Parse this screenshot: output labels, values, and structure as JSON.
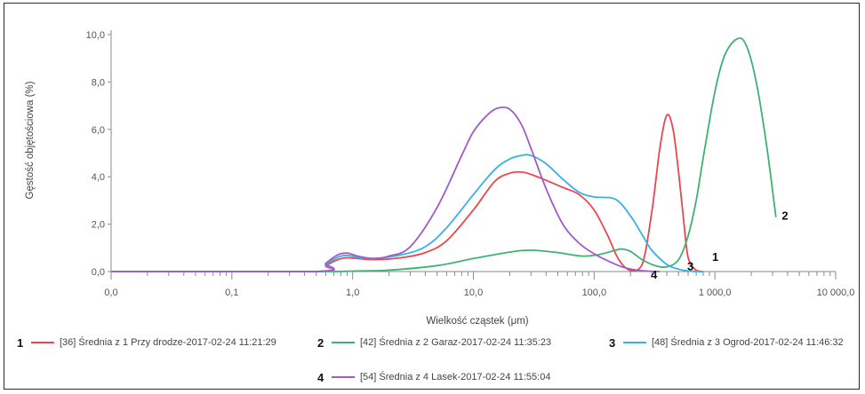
{
  "chart_data": {
    "type": "line",
    "xscale": "log",
    "xlabel": "Wielkość cząstek (μm)",
    "ylabel": "Gęstość objętościowa (%)",
    "xlim": [
      0.01,
      10000
    ],
    "ylim": [
      0,
      10
    ],
    "x_ticks": [
      0.01,
      0.1,
      1,
      10,
      100,
      1000,
      10000
    ],
    "x_tick_labels": [
      "0,0",
      "0,1",
      "1,0",
      "10,0",
      "100,0",
      "1 000,0",
      "10 000,0"
    ],
    "y_ticks": [
      0,
      2,
      4,
      6,
      8,
      10
    ],
    "y_tick_labels": [
      "0,0",
      "2,0",
      "4,0",
      "6,0",
      "8,0",
      "10,0"
    ],
    "grid": false,
    "legend_position": "bottom",
    "series": [
      {
        "number": "1",
        "name": "[36] Średnia z 1 Przy drodze-2017-02-24 11:21:29",
        "color": "#e8474f",
        "x": [
          0.01,
          0.5,
          0.6,
          0.75,
          0.9,
          1.1,
          1.5,
          2.5,
          4,
          6,
          10,
          15,
          20,
          25,
          30,
          40,
          55,
          75,
          100,
          130,
          160,
          200,
          250,
          300,
          350,
          400,
          450,
          500,
          550,
          600,
          700,
          800
        ],
        "y": [
          0,
          0,
          0.25,
          0.5,
          0.58,
          0.55,
          0.5,
          0.58,
          0.8,
          1.3,
          2.6,
          3.8,
          4.15,
          4.2,
          4.1,
          3.85,
          3.55,
          3.25,
          2.6,
          1.5,
          0.5,
          0.05,
          0.3,
          2.5,
          5.2,
          6.6,
          6.0,
          4.2,
          2.2,
          0.6,
          0.05,
          0
        ]
      },
      {
        "number": "2",
        "name": "[42] Średnia z 2 Garaz-2017-02-24 11:35:23",
        "color": "#3cb371",
        "x": [
          0.01,
          0.5,
          1,
          2,
          5,
          10,
          20,
          30,
          50,
          80,
          110,
          150,
          170,
          200,
          250,
          320,
          400,
          500,
          600,
          700,
          800,
          1000,
          1200,
          1500,
          1800,
          2200,
          2700,
          3200
        ],
        "y": [
          0,
          0,
          0.02,
          0.06,
          0.25,
          0.55,
          0.82,
          0.9,
          0.8,
          0.65,
          0.72,
          0.9,
          0.95,
          0.85,
          0.5,
          0.25,
          0.2,
          0.5,
          1.5,
          3.0,
          4.8,
          7.6,
          9.1,
          9.8,
          9.6,
          8.0,
          5.2,
          2.3
        ]
      },
      {
        "number": "3",
        "name": "[48] Średnia z 3 Ogrod-2017-02-24 11:46:32",
        "color": "#3ab0e6",
        "x": [
          0.01,
          0.5,
          0.6,
          0.75,
          0.9,
          1.1,
          1.5,
          2.5,
          4,
          6,
          10,
          15,
          20,
          25,
          30,
          40,
          55,
          75,
          100,
          150,
          200,
          250,
          300,
          400,
          500,
          600,
          700,
          800
        ],
        "y": [
          0,
          0,
          0.3,
          0.6,
          0.68,
          0.6,
          0.55,
          0.7,
          1.05,
          1.85,
          3.25,
          4.3,
          4.75,
          4.9,
          4.9,
          4.55,
          3.9,
          3.35,
          3.15,
          3.05,
          2.35,
          1.55,
          0.9,
          0.3,
          0.1,
          0.03,
          0.0,
          0
        ]
      },
      {
        "number": "4",
        "name": "[54] Średnia z 4 Lasek-2017-02-24 11:55:04",
        "color": "#a25bc6",
        "x": [
          0.01,
          0.5,
          0.6,
          0.75,
          0.9,
          1.1,
          1.5,
          2,
          3,
          5,
          8,
          10,
          13,
          16,
          20,
          25,
          30,
          40,
          55,
          75,
          100,
          130,
          170,
          220,
          280,
          350
        ],
        "y": [
          0,
          0,
          0.35,
          0.7,
          0.78,
          0.65,
          0.55,
          0.65,
          1.05,
          2.7,
          4.9,
          5.9,
          6.6,
          6.9,
          6.85,
          6.2,
          5.2,
          3.5,
          2.0,
          1.2,
          0.75,
          0.45,
          0.2,
          0.07,
          0.02,
          0
        ]
      }
    ],
    "annotations": [
      {
        "text": "2",
        "x": 3400,
        "y": 2.35
      },
      {
        "text": "1",
        "x": 900,
        "y": 0.6
      },
      {
        "text": "3",
        "x": 560,
        "y": 0.2
      },
      {
        "text": "4",
        "x": 280,
        "y": -0.15
      }
    ]
  }
}
